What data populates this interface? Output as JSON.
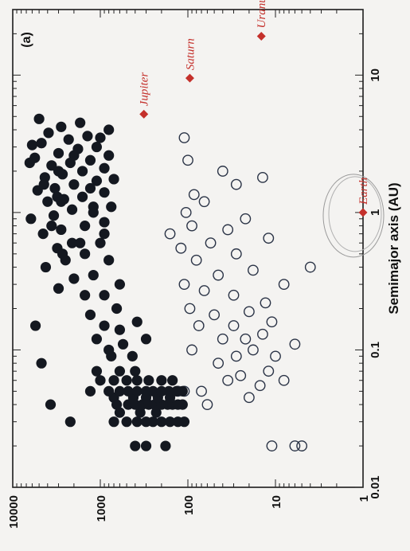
{
  "chart_data": {
    "type": "scatter",
    "orientation": "rotated-90-clockwise",
    "panel_label": "(a)",
    "xlabel": "Semimajor axis (AU)",
    "ylabel": "",
    "x_scale": "log",
    "y_scale": "log",
    "xlim": [
      0.01,
      30
    ],
    "ylim": [
      1,
      10000
    ],
    "x_ticks": [
      "0.01",
      "0.1",
      "1",
      "10"
    ],
    "y_ticks": [
      "10000",
      "1000",
      "100",
      "10",
      "1"
    ],
    "colors": {
      "filled": "#141820",
      "open": "#2a3346",
      "planet": "#c4302b"
    },
    "planets": [
      {
        "name": "Jupiter",
        "x": 5.2,
        "y": 318
      },
      {
        "name": "Saturn",
        "x": 9.5,
        "y": 95
      },
      {
        "name": "Uranus",
        "x": 19.2,
        "y": 14.5
      },
      {
        "name": "Earth",
        "x": 1.0,
        "y": 1.0
      }
    ],
    "filled_series": [
      [
        0.02,
        400
      ],
      [
        0.02,
        300
      ],
      [
        0.02,
        180
      ],
      [
        0.03,
        700
      ],
      [
        0.03,
        500
      ],
      [
        0.03,
        380
      ],
      [
        0.03,
        300
      ],
      [
        0.03,
        250
      ],
      [
        0.03,
        200
      ],
      [
        0.03,
        160
      ],
      [
        0.03,
        130
      ],
      [
        0.03,
        110
      ],
      [
        0.03,
        2200
      ],
      [
        0.035,
        600
      ],
      [
        0.035,
        350
      ],
      [
        0.035,
        230
      ],
      [
        0.04,
        650
      ],
      [
        0.04,
        480
      ],
      [
        0.04,
        400
      ],
      [
        0.04,
        330
      ],
      [
        0.04,
        280
      ],
      [
        0.04,
        240
      ],
      [
        0.04,
        200
      ],
      [
        0.04,
        170
      ],
      [
        0.04,
        150
      ],
      [
        0.04,
        130
      ],
      [
        0.04,
        115
      ],
      [
        0.045,
        700
      ],
      [
        0.045,
        420
      ],
      [
        0.045,
        300
      ],
      [
        0.045,
        220
      ],
      [
        0.045,
        160
      ],
      [
        0.05,
        1300
      ],
      [
        0.05,
        800
      ],
      [
        0.05,
        600
      ],
      [
        0.05,
        480
      ],
      [
        0.05,
        380
      ],
      [
        0.05,
        300
      ],
      [
        0.05,
        250
      ],
      [
        0.05,
        200
      ],
      [
        0.05,
        165
      ],
      [
        0.05,
        135
      ],
      [
        0.05,
        115
      ],
      [
        0.06,
        1000
      ],
      [
        0.06,
        700
      ],
      [
        0.06,
        500
      ],
      [
        0.06,
        380
      ],
      [
        0.06,
        280
      ],
      [
        0.06,
        200
      ],
      [
        0.06,
        150
      ],
      [
        0.07,
        1100
      ],
      [
        0.07,
        600
      ],
      [
        0.07,
        400
      ],
      [
        0.04,
        3700
      ],
      [
        0.08,
        4700
      ],
      [
        0.15,
        5500
      ],
      [
        0.09,
        750
      ],
      [
        0.09,
        430
      ],
      [
        0.1,
        800
      ],
      [
        0.11,
        550
      ],
      [
        0.12,
        1100
      ],
      [
        0.12,
        300
      ],
      [
        0.14,
        600
      ],
      [
        0.15,
        900
      ],
      [
        0.16,
        380
      ],
      [
        0.18,
        1300
      ],
      [
        0.2,
        650
      ],
      [
        0.25,
        1500
      ],
      [
        0.25,
        900
      ],
      [
        0.28,
        3000
      ],
      [
        0.3,
        600
      ],
      [
        0.33,
        2000
      ],
      [
        0.35,
        1200
      ],
      [
        0.4,
        4200
      ],
      [
        0.45,
        2500
      ],
      [
        0.45,
        800
      ],
      [
        0.5,
        1500
      ],
      [
        0.55,
        3100
      ],
      [
        0.6,
        2100
      ],
      [
        0.6,
        1000
      ],
      [
        0.7,
        4500
      ],
      [
        0.75,
        2800
      ],
      [
        0.8,
        1500
      ],
      [
        0.85,
        900
      ],
      [
        0.9,
        6200
      ],
      [
        0.95,
        3400
      ],
      [
        1.05,
        2100
      ],
      [
        1.1,
        1200
      ],
      [
        1.1,
        750
      ],
      [
        1.2,
        4000
      ],
      [
        1.25,
        2600
      ],
      [
        1.3,
        1600
      ],
      [
        1.4,
        900
      ],
      [
        1.45,
        5200
      ],
      [
        1.5,
        3300
      ],
      [
        1.6,
        2000
      ],
      [
        1.7,
        1100
      ],
      [
        1.75,
        700
      ],
      [
        1.8,
        4300
      ],
      [
        1.9,
        2700
      ],
      [
        2.0,
        1600
      ],
      [
        2.1,
        900
      ],
      [
        2.2,
        3600
      ],
      [
        2.3,
        2200
      ],
      [
        2.4,
        1300
      ],
      [
        2.5,
        5600
      ],
      [
        2.6,
        800
      ],
      [
        2.7,
        3000
      ],
      [
        2.9,
        1800
      ],
      [
        3.0,
        1100
      ],
      [
        3.2,
        4700
      ],
      [
        3.4,
        2300
      ],
      [
        3.6,
        1400
      ],
      [
        3.8,
        3900
      ],
      [
        4.0,
        800
      ],
      [
        4.2,
        2800
      ],
      [
        4.5,
        1700
      ],
      [
        4.8,
        5000
      ],
      [
        1.3,
        3100
      ],
      [
        1.6,
        4400
      ],
      [
        2.3,
        6400
      ],
      [
        3.1,
        6000
      ],
      [
        0.6,
        1700
      ],
      [
        0.8,
        3600
      ],
      [
        1.0,
        1200
      ],
      [
        1.2,
        2800
      ],
      [
        1.5,
        1300
      ],
      [
        2.0,
        3000
      ],
      [
        2.6,
        2000
      ],
      [
        3.5,
        1000
      ],
      [
        0.7,
        900
      ],
      [
        0.5,
        2700
      ]
    ],
    "open_series": [
      [
        0.02,
        5
      ],
      [
        0.02,
        6
      ],
      [
        0.02,
        11
      ],
      [
        0.04,
        60
      ],
      [
        0.045,
        20
      ],
      [
        0.05,
        70
      ],
      [
        0.05,
        110
      ],
      [
        0.05,
        130
      ],
      [
        0.055,
        15
      ],
      [
        0.06,
        35
      ],
      [
        0.06,
        8
      ],
      [
        0.065,
        25
      ],
      [
        0.07,
        12
      ],
      [
        0.08,
        45
      ],
      [
        0.09,
        10
      ],
      [
        0.09,
        28
      ],
      [
        0.1,
        18
      ],
      [
        0.1,
        90
      ],
      [
        0.11,
        6
      ],
      [
        0.12,
        40
      ],
      [
        0.12,
        22
      ],
      [
        0.13,
        14
      ],
      [
        0.15,
        75
      ],
      [
        0.15,
        30
      ],
      [
        0.16,
        11
      ],
      [
        0.18,
        50
      ],
      [
        0.19,
        20
      ],
      [
        0.2,
        95
      ],
      [
        0.22,
        13
      ],
      [
        0.25,
        30
      ],
      [
        0.27,
        65
      ],
      [
        0.3,
        8
      ],
      [
        0.3,
        110
      ],
      [
        0.35,
        45
      ],
      [
        0.38,
        18
      ],
      [
        0.4,
        4
      ],
      [
        0.45,
        80
      ],
      [
        0.5,
        28
      ],
      [
        0.55,
        120
      ],
      [
        0.6,
        55
      ],
      [
        0.65,
        12
      ],
      [
        0.7,
        160
      ],
      [
        0.75,
        35
      ],
      [
        0.8,
        90
      ],
      [
        0.9,
        22
      ],
      [
        1.0,
        105
      ],
      [
        1.2,
        65
      ],
      [
        1.35,
        85
      ],
      [
        1.6,
        28
      ],
      [
        1.8,
        14
      ],
      [
        2.0,
        40
      ],
      [
        2.4,
        100
      ],
      [
        3.5,
        110
      ]
    ]
  }
}
